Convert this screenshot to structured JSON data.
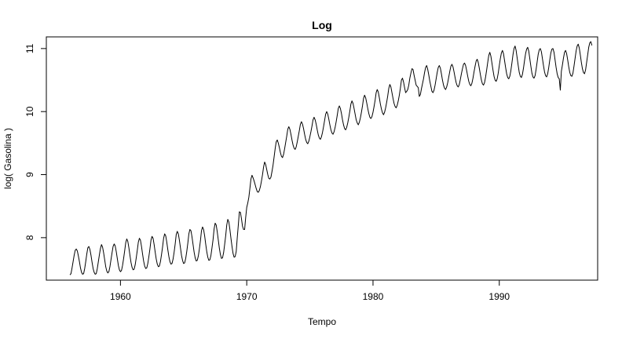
{
  "chart_data": {
    "type": "line",
    "title": "Log",
    "xlabel": "Tempo",
    "ylabel": "log( Gasolina )",
    "xlim": [
      1954.13,
      1997.79
    ],
    "ylim": [
      7.326,
      11.185
    ],
    "x_ticks": [
      1960,
      1970,
      1980,
      1990
    ],
    "x_tick_labels": [
      "1960",
      "1970",
      "1980",
      "1990"
    ],
    "y_ticks": [
      8,
      9,
      10,
      11
    ],
    "y_tick_labels": [
      "8",
      "9",
      "10",
      "11"
    ],
    "grid": false,
    "legend": "none",
    "line_color": "#000000",
    "series": [
      {
        "start": 1956.0,
        "frequency": 12,
        "values": [
          7.41,
          7.43,
          7.52,
          7.62,
          7.72,
          7.8,
          7.82,
          7.79,
          7.71,
          7.62,
          7.52,
          7.45,
          7.42,
          7.43,
          7.51,
          7.62,
          7.74,
          7.84,
          7.86,
          7.81,
          7.72,
          7.61,
          7.51,
          7.45,
          7.42,
          7.43,
          7.51,
          7.62,
          7.73,
          7.83,
          7.89,
          7.85,
          7.76,
          7.65,
          7.54,
          7.47,
          7.44,
          7.46,
          7.54,
          7.65,
          7.76,
          7.86,
          7.9,
          7.87,
          7.78,
          7.67,
          7.56,
          7.49,
          7.46,
          7.48,
          7.56,
          7.67,
          7.79,
          7.92,
          7.98,
          7.94,
          7.84,
          7.72,
          7.61,
          7.53,
          7.49,
          7.5,
          7.57,
          7.68,
          7.8,
          7.93,
          7.99,
          7.96,
          7.86,
          7.74,
          7.63,
          7.55,
          7.51,
          7.52,
          7.59,
          7.7,
          7.82,
          7.96,
          8.02,
          7.99,
          7.89,
          7.77,
          7.66,
          7.58,
          7.54,
          7.55,
          7.62,
          7.73,
          7.85,
          7.99,
          8.06,
          8.03,
          7.93,
          7.81,
          7.7,
          7.62,
          7.58,
          7.59,
          7.66,
          7.77,
          7.9,
          8.05,
          8.1,
          8.06,
          7.96,
          7.84,
          7.72,
          7.64,
          7.59,
          7.6,
          7.67,
          7.78,
          7.91,
          8.06,
          8.13,
          8.11,
          8.01,
          7.89,
          7.77,
          7.68,
          7.63,
          7.64,
          7.71,
          7.82,
          7.95,
          8.11,
          8.17,
          8.13,
          8.03,
          7.9,
          7.78,
          7.69,
          7.64,
          7.65,
          7.72,
          7.84,
          7.97,
          8.14,
          8.23,
          8.2,
          8.09,
          7.96,
          7.83,
          7.73,
          7.67,
          7.68,
          7.76,
          7.89,
          8.03,
          8.2,
          8.29,
          8.25,
          8.13,
          7.99,
          7.86,
          7.75,
          7.69,
          7.7,
          7.78,
          8.0,
          8.2,
          8.41,
          8.4,
          8.3,
          8.18,
          8.13,
          8.13,
          8.32,
          8.48,
          8.55,
          8.64,
          8.78,
          8.93,
          8.99,
          8.95,
          8.9,
          8.84,
          8.78,
          8.73,
          8.72,
          8.75,
          8.81,
          8.9,
          9.0,
          9.12,
          9.2,
          9.16,
          9.08,
          9.0,
          8.94,
          8.93,
          8.96,
          9.05,
          9.15,
          9.28,
          9.41,
          9.52,
          9.55,
          9.5,
          9.43,
          9.35,
          9.29,
          9.27,
          9.32,
          9.41,
          9.51,
          9.61,
          9.72,
          9.76,
          9.72,
          9.64,
          9.55,
          9.47,
          9.42,
          9.4,
          9.44,
          9.52,
          9.61,
          9.7,
          9.8,
          9.84,
          9.8,
          9.73,
          9.64,
          9.56,
          9.51,
          9.49,
          9.53,
          9.6,
          9.68,
          9.77,
          9.87,
          9.91,
          9.87,
          9.8,
          9.71,
          9.63,
          9.58,
          9.56,
          9.6,
          9.67,
          9.76,
          9.86,
          9.96,
          10.0,
          9.96,
          9.88,
          9.79,
          9.71,
          9.66,
          9.64,
          9.68,
          9.75,
          9.84,
          9.94,
          10.05,
          10.09,
          10.05,
          9.97,
          9.87,
          9.79,
          9.73,
          9.71,
          9.75,
          9.82,
          9.91,
          10.01,
          10.12,
          10.17,
          10.13,
          10.05,
          9.96,
          9.87,
          9.82,
          9.79,
          9.83,
          9.9,
          9.99,
          10.09,
          10.21,
          10.26,
          10.22,
          10.14,
          10.05,
          9.97,
          9.91,
          9.89,
          9.92,
          9.99,
          10.08,
          10.18,
          10.3,
          10.35,
          10.31,
          10.22,
          10.12,
          10.04,
          9.98,
          9.95,
          9.99,
          10.06,
          10.15,
          10.25,
          10.37,
          10.43,
          10.39,
          10.3,
          10.21,
          10.13,
          10.08,
          10.06,
          10.1,
          10.17,
          10.26,
          10.37,
          10.5,
          10.53,
          10.47,
          10.38,
          10.3,
          10.32,
          10.35,
          10.42,
          10.53,
          10.61,
          10.68,
          10.67,
          10.58,
          10.5,
          10.42,
          10.4,
          10.38,
          10.24,
          10.27,
          10.36,
          10.44,
          10.52,
          10.62,
          10.7,
          10.73,
          10.67,
          10.58,
          10.48,
          10.4,
          10.32,
          10.3,
          10.34,
          10.42,
          10.52,
          10.62,
          10.7,
          10.73,
          10.69,
          10.6,
          10.5,
          10.42,
          10.37,
          10.35,
          10.39,
          10.46,
          10.55,
          10.64,
          10.72,
          10.75,
          10.71,
          10.63,
          10.54,
          10.46,
          10.41,
          10.39,
          10.43,
          10.51,
          10.6,
          10.68,
          10.75,
          10.77,
          10.73,
          10.65,
          10.56,
          10.48,
          10.43,
          10.41,
          10.45,
          10.53,
          10.63,
          10.72,
          10.8,
          10.83,
          10.78,
          10.69,
          10.59,
          10.5,
          10.44,
          10.42,
          10.46,
          10.55,
          10.66,
          10.78,
          10.89,
          10.94,
          10.88,
          10.77,
          10.66,
          10.56,
          10.5,
          10.48,
          10.52,
          10.61,
          10.73,
          10.84,
          10.93,
          10.97,
          10.92,
          10.81,
          10.7,
          10.6,
          10.54,
          10.52,
          10.56,
          10.65,
          10.77,
          10.9,
          11.0,
          11.04,
          10.97,
          10.85,
          10.73,
          10.62,
          10.56,
          10.54,
          10.59,
          10.69,
          10.81,
          10.92,
          10.99,
          11.02,
          10.96,
          10.84,
          10.72,
          10.61,
          10.55,
          10.53,
          10.57,
          10.67,
          10.79,
          10.91,
          10.98,
          11.0,
          10.95,
          10.84,
          10.73,
          10.63,
          10.57,
          10.55,
          10.6,
          10.7,
          10.82,
          10.93,
          10.99,
          11.0,
          10.94,
          10.82,
          10.7,
          10.6,
          10.54,
          10.52,
          10.34,
          10.64,
          10.74,
          10.85,
          10.94,
          10.97,
          10.92,
          10.82,
          10.71,
          10.62,
          10.57,
          10.56,
          10.61,
          10.72,
          10.84,
          10.96,
          11.04,
          11.07,
          11.01,
          10.9,
          10.78,
          10.68,
          10.62,
          10.6,
          10.66,
          10.78,
          10.9,
          11.02,
          11.09,
          11.11,
          11.05
        ]
      }
    ]
  }
}
